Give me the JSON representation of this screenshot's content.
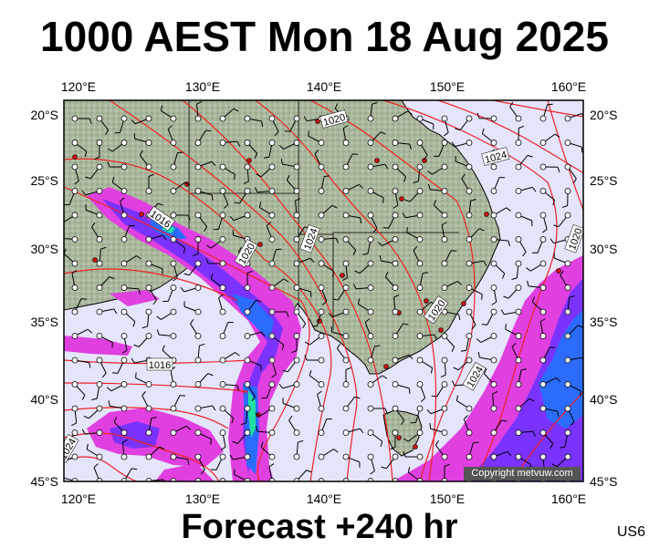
{
  "title": "1000 AEST Mon 18 Aug 2025",
  "subtitle": "Forecast +240 hr",
  "model_code": "US6",
  "copyright": "Copyright metvuw.com",
  "lon_ticks": [
    "120°E",
    "130°E",
    "140°E",
    "150°E",
    "160°E"
  ],
  "lat_ticks": [
    "20°S",
    "25°S",
    "30°S",
    "35°S",
    "40°S",
    "45°S"
  ],
  "isobar_labels": [
    "1020",
    "1024",
    "1016",
    "1020",
    "1024",
    "1020",
    "1024",
    "1016",
    "1020",
    "1024",
    "1020",
    "1012"
  ],
  "colors": {
    "sea": "#e4e4fb",
    "land": "#a9b79c",
    "isobar": "#ee2222",
    "rain_light": "#e040e0",
    "rain_mid": "#7a33ff",
    "rain_heavy": "#2b6cff",
    "rain_core": "#20e0a0",
    "city": "#cc1111"
  }
}
